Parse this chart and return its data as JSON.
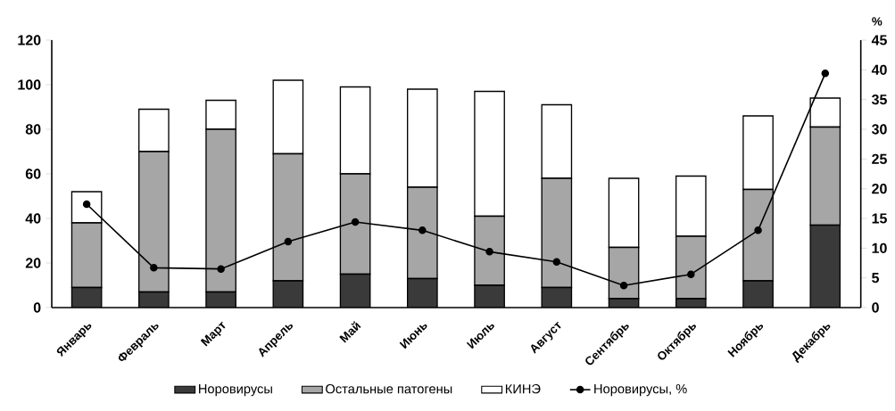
{
  "chart_data": {
    "type": "bar",
    "stacked": true,
    "y2label": "%",
    "legend": "bottom",
    "marker": "circle",
    "categories": [
      "Январь",
      "Февраль",
      "Март",
      "Апрель",
      "Май",
      "Июнь",
      "Июль",
      "Август",
      "Сентябрь",
      "Октябрь",
      "Ноябрь",
      "Декабрь"
    ],
    "ylim": [
      0,
      120
    ],
    "yticks": [
      0,
      20,
      40,
      60,
      80,
      100,
      120
    ],
    "y2lim": [
      0,
      45
    ],
    "y2ticks": [
      0,
      5,
      10,
      15,
      20,
      25,
      30,
      35,
      40,
      45
    ],
    "series": [
      {
        "name": "Норовирусы",
        "color": "#3a3a3a",
        "values": [
          9,
          7,
          7,
          12,
          15,
          13,
          10,
          9,
          4,
          4,
          12,
          37
        ]
      },
      {
        "name": "Остальные патогены",
        "color": "#a6a6a6",
        "values": [
          29,
          63,
          73,
          57,
          45,
          41,
          31,
          49,
          23,
          28,
          41,
          44
        ]
      },
      {
        "name": "КИНЭ",
        "color": "#ffffff",
        "values": [
          14,
          19,
          13,
          33,
          39,
          44,
          56,
          33,
          31,
          27,
          33,
          13
        ]
      },
      {
        "name": "Норовирусы, %",
        "type": "line",
        "axis": "y2",
        "color": "#000000",
        "values": [
          17.4,
          6.7,
          6.5,
          11.1,
          14.4,
          13.0,
          9.4,
          7.7,
          3.7,
          5.6,
          13.0,
          39.4
        ]
      }
    ]
  }
}
